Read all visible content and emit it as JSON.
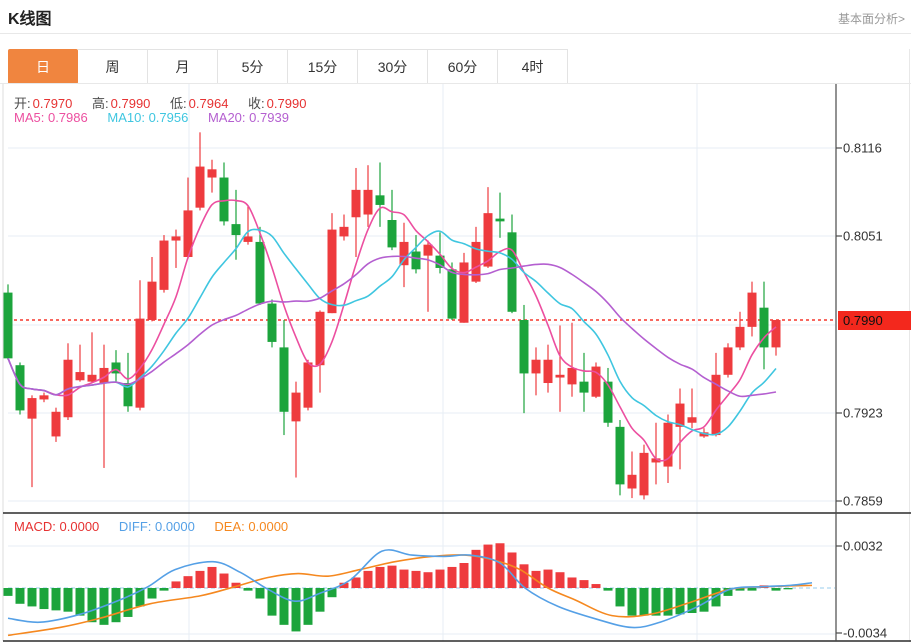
{
  "header": {
    "title": "K线图",
    "link": "基本面分析>"
  },
  "tabs": {
    "items": [
      {
        "label": "日",
        "active": true
      },
      {
        "label": "周",
        "active": false
      },
      {
        "label": "月",
        "active": false
      },
      {
        "label": "5分",
        "active": false
      },
      {
        "label": "15分",
        "active": false
      },
      {
        "label": "30分",
        "active": false
      },
      {
        "label": "60分",
        "active": false
      },
      {
        "label": "4时",
        "active": false
      }
    ]
  },
  "legend": {
    "open_label": "开:",
    "open": "0.7970",
    "high_label": "高:",
    "high": "0.7990",
    "low_label": "低:",
    "low": "0.7964",
    "close_label": "收:",
    "close": "0.7990"
  },
  "ma_legend": {
    "ma5_label": "MA5:",
    "ma5": "0.7986",
    "ma10_label": "MA10:",
    "ma10": "0.7956",
    "ma20_label": "MA20:",
    "ma20": "0.7939"
  },
  "macd_legend": {
    "macd_label": "MACD:",
    "macd": "0.0000",
    "diff_label": "DIFF:",
    "diff": "0.0000",
    "dea_label": "DEA:",
    "dea": "0.0000"
  },
  "chart_data": {
    "type": "candlestick",
    "title": "K线图 daily candlestick with MA5/MA10/MA20 and MACD panel",
    "main": {
      "y_ticks": [
        {
          "label": "0.8116",
          "value": 0.8116
        },
        {
          "label": "0.8051",
          "value": 0.8051
        },
        {
          "label": "0.7923",
          "value": 0.7923
        },
        {
          "label": "0.7859",
          "value": 0.7859
        }
      ],
      "current_price": {
        "label": "0.7990",
        "value": 0.799
      },
      "ma_periods": [
        5,
        10,
        20
      ],
      "candles_ohlc": [
        [
          0.801,
          0.8016,
          0.7961,
          0.7962
        ],
        [
          0.7957,
          0.7959,
          0.7921,
          0.7924
        ],
        [
          0.7918,
          0.7935,
          0.7868,
          0.7933
        ],
        [
          0.7932,
          0.7937,
          0.793,
          0.7935
        ],
        [
          0.7905,
          0.7926,
          0.7901,
          0.7923
        ],
        [
          0.7919,
          0.7973,
          0.7917,
          0.7961
        ],
        [
          0.7946,
          0.7972,
          0.7945,
          0.7952
        ],
        [
          0.7945,
          0.7981,
          0.7944,
          0.795
        ],
        [
          0.7944,
          0.7972,
          0.7882,
          0.7955
        ],
        [
          0.7959,
          0.7968,
          0.7945,
          0.7951
        ],
        [
          0.7944,
          0.7966,
          0.7923,
          0.7927
        ],
        [
          0.7926,
          0.8019,
          0.7924,
          0.7991
        ],
        [
          0.799,
          0.8036,
          0.7989,
          0.8018
        ],
        [
          0.8012,
          0.8052,
          0.801,
          0.8048
        ],
        [
          0.8048,
          0.8056,
          0.8028,
          0.8051
        ],
        [
          0.8036,
          0.8094,
          0.8035,
          0.807
        ],
        [
          0.8072,
          0.8127,
          0.807,
          0.8102
        ],
        [
          0.8094,
          0.8107,
          0.8083,
          0.81
        ],
        [
          0.8094,
          0.8105,
          0.8059,
          0.8062
        ],
        [
          0.806,
          0.8085,
          0.8034,
          0.8052
        ],
        [
          0.8047,
          0.8073,
          0.8045,
          0.8051
        ],
        [
          0.8047,
          0.8058,
          0.8001,
          0.8002
        ],
        [
          0.8002,
          0.8005,
          0.797,
          0.7974
        ],
        [
          0.797,
          0.799,
          0.7906,
          0.7923
        ],
        [
          0.7916,
          0.7945,
          0.7875,
          0.7937
        ],
        [
          0.7926,
          0.7961,
          0.7924,
          0.7959
        ],
        [
          0.7957,
          0.7997,
          0.7937,
          0.7996
        ],
        [
          0.7995,
          0.8068,
          0.7995,
          0.8056
        ],
        [
          0.8051,
          0.8067,
          0.8048,
          0.8058
        ],
        [
          0.8065,
          0.8101,
          0.8036,
          0.8085
        ],
        [
          0.8067,
          0.8103,
          0.8058,
          0.8085
        ],
        [
          0.8081,
          0.8105,
          0.8058,
          0.8074
        ],
        [
          0.8063,
          0.8085,
          0.8041,
          0.8043
        ],
        [
          0.803,
          0.8061,
          0.8014,
          0.8047
        ],
        [
          0.804,
          0.8052,
          0.8024,
          0.8027
        ],
        [
          0.8037,
          0.8048,
          0.7996,
          0.8045
        ],
        [
          0.8037,
          0.8054,
          0.8024,
          0.8028
        ],
        [
          0.8027,
          0.8032,
          0.799,
          0.7991
        ],
        [
          0.7988,
          0.8039,
          0.7988,
          0.8032
        ],
        [
          0.8018,
          0.8058,
          0.8017,
          0.8047
        ],
        [
          0.8029,
          0.8087,
          0.8028,
          0.8068
        ],
        [
          0.8064,
          0.8083,
          0.805,
          0.8062
        ],
        [
          0.8054,
          0.8067,
          0.7995,
          0.7996
        ],
        [
          0.799,
          0.8001,
          0.7922,
          0.7951
        ],
        [
          0.7951,
          0.797,
          0.7935,
          0.7961
        ],
        [
          0.7944,
          0.7972,
          0.7937,
          0.7961
        ],
        [
          0.7948,
          0.7986,
          0.7923,
          0.795
        ],
        [
          0.7943,
          0.7988,
          0.7934,
          0.7955
        ],
        [
          0.7945,
          0.7966,
          0.7923,
          0.7937
        ],
        [
          0.7934,
          0.7959,
          0.7933,
          0.7956
        ],
        [
          0.7945,
          0.7955,
          0.7912,
          0.7915
        ],
        [
          0.7912,
          0.7917,
          0.7862,
          0.787
        ],
        [
          0.7867,
          0.7894,
          0.786,
          0.7877
        ],
        [
          0.7862,
          0.7899,
          0.7859,
          0.7893
        ],
        [
          0.7886,
          0.7915,
          0.787,
          0.7889
        ],
        [
          0.7883,
          0.7921,
          0.7871,
          0.7915
        ],
        [
          0.7912,
          0.794,
          0.7881,
          0.7929
        ],
        [
          0.7915,
          0.794,
          0.7911,
          0.7919
        ],
        [
          0.7905,
          0.7911,
          0.7904,
          0.7908
        ],
        [
          0.7906,
          0.7966,
          0.7905,
          0.795
        ],
        [
          0.795,
          0.7973,
          0.7948,
          0.797
        ],
        [
          0.797,
          0.7996,
          0.7968,
          0.7985
        ],
        [
          0.7985,
          0.8018,
          0.7978,
          0.801
        ],
        [
          0.7999,
          0.8018,
          0.7954,
          0.797
        ],
        [
          0.797,
          0.799,
          0.7964,
          0.799
        ]
      ]
    },
    "macd": {
      "y_ticks": [
        {
          "label": "0.0032",
          "value": 0.0032
        },
        {
          "label": "-0.0034",
          "value": -0.0034
        }
      ],
      "histogram": [
        -0.0006,
        -0.0012,
        -0.0014,
        -0.0016,
        -0.0017,
        -0.0018,
        -0.0021,
        -0.0026,
        -0.0028,
        -0.0026,
        -0.0022,
        -0.0014,
        -0.0008,
        -0.0002,
        0.0005,
        0.0009,
        0.0013,
        0.0016,
        0.0011,
        0.0004,
        -0.0002,
        -0.0008,
        -0.0021,
        -0.0028,
        -0.0033,
        -0.0028,
        -0.0018,
        -0.0007,
        0.0004,
        0.0008,
        0.0013,
        0.0016,
        0.0017,
        0.0014,
        0.0013,
        0.0012,
        0.0014,
        0.0016,
        0.0019,
        0.0029,
        0.0033,
        0.0034,
        0.0027,
        0.0018,
        0.0013,
        0.0014,
        0.0012,
        0.0008,
        0.0006,
        0.0003,
        -0.0002,
        -0.0014,
        -0.0021,
        -0.0021,
        -0.0021,
        -0.0021,
        -0.002,
        -0.0019,
        -0.0018,
        -0.0014,
        -0.0006,
        -0.0002,
        -0.0002,
        0.0002,
        -0.0002,
        -0.0001
      ],
      "diff_points": [
        [
          8,
          -0.0023
        ],
        [
          40,
          -0.0026
        ],
        [
          80,
          -0.002
        ],
        [
          120,
          -0.0009
        ],
        [
          148,
          0.0001
        ],
        [
          175,
          0.0014
        ],
        [
          213,
          0.002
        ],
        [
          240,
          0.0012
        ],
        [
          268,
          -0.0001
        ],
        [
          295,
          -0.001
        ],
        [
          320,
          -0.0004
        ],
        [
          350,
          0.0006
        ],
        [
          382,
          0.0028
        ],
        [
          412,
          0.0025
        ],
        [
          445,
          0.0024
        ],
        [
          470,
          0.0025
        ],
        [
          500,
          0.0019
        ],
        [
          525,
          0.0
        ],
        [
          558,
          -0.0014
        ],
        [
          598,
          -0.0024
        ],
        [
          632,
          -0.003
        ],
        [
          660,
          -0.0026
        ],
        [
          698,
          -0.0014
        ],
        [
          730,
          -0.0001
        ],
        [
          762,
          0.0001
        ],
        [
          790,
          0.0002
        ],
        [
          812,
          0.0004
        ]
      ],
      "dea_points": [
        [
          8,
          -0.0036
        ],
        [
          60,
          -0.003
        ],
        [
          100,
          -0.0023
        ],
        [
          150,
          -0.0012
        ],
        [
          200,
          -0.0006
        ],
        [
          235,
          0.0001
        ],
        [
          268,
          0.0008
        ],
        [
          298,
          0.0011
        ],
        [
          328,
          0.0009
        ],
        [
          360,
          0.0014
        ],
        [
          395,
          0.002
        ],
        [
          432,
          0.0024
        ],
        [
          465,
          0.0025
        ],
        [
          495,
          0.0021
        ],
        [
          520,
          0.0014
        ],
        [
          548,
          0.0
        ],
        [
          575,
          -0.0009
        ],
        [
          612,
          -0.0021
        ],
        [
          650,
          -0.002
        ],
        [
          690,
          -0.0011
        ],
        [
          730,
          -0.0001
        ],
        [
          765,
          0.0001
        ],
        [
          812,
          0.0002
        ]
      ]
    },
    "colors": {
      "up": "#ee3b3e",
      "down": "#1ca43c",
      "value_red": "#e63232",
      "ma5": "#ec4fa0",
      "ma10": "#3fc6e0",
      "ma20": "#b45fd0",
      "diff": "#55a0e6",
      "dea": "#f5881f",
      "price_line": "#f5362b",
      "price_tag_bg": "#f3281d",
      "price_tag_text": "#111111",
      "grid": "#e7edf4",
      "zero_line": "#aed6f0",
      "axis_border": "#4a4a4a",
      "panel_border": "#2b2b2b",
      "tab_active_bg": "#f0853f"
    }
  }
}
